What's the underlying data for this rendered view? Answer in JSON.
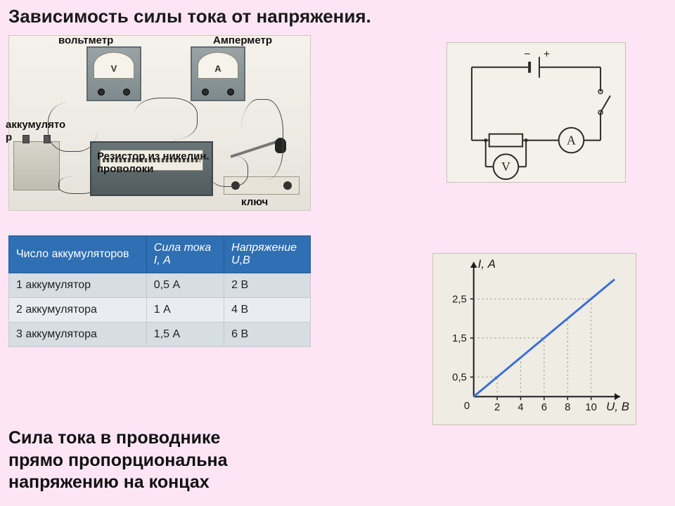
{
  "title": "Зависимость силы тока от напряжения.",
  "photo": {
    "labels": {
      "voltmeter": "вольтметр",
      "ammeter": "Амперметр",
      "battery_line1": "аккумулято",
      "battery_line2": "р",
      "resistor_line1": "Резистор из никелин.",
      "resistor_line2": "проволоки",
      "switch": "ключ"
    },
    "voltmeter_symbol": "V",
    "ammeter_symbol": "A",
    "meter_color": "#7e8a8d",
    "dial_color": "#f6f3ea"
  },
  "circuit": {
    "bg": "#f0eee5",
    "stroke": "#2a2a2a",
    "stroke_width": 2,
    "battery_minus": "−",
    "battery_plus": "+",
    "ammeter_label": "A",
    "voltmeter_label": "V",
    "label_fontsize": 18
  },
  "table": {
    "columns": [
      "Число аккумуляторов",
      "Сила тока\n I, А",
      "Напряжение\n U,В"
    ],
    "rows": [
      [
        "1 аккумулятор",
        "0,5 А",
        "2 В"
      ],
      [
        "2 аккумулятора",
        "1 А",
        "4 В"
      ],
      [
        "3 аккумулятора",
        "1,5 А",
        "6 В"
      ]
    ],
    "header_bg": "#2f6fb3",
    "header_fg": "#ffffff",
    "row_alt_bg": [
      "#d6dde3",
      "#e9edf1"
    ]
  },
  "graph": {
    "type": "line",
    "bg": "#eeece3",
    "axis_color": "#1a1a1a",
    "grid_color": "#8f8b7d",
    "line_color": "#3a6fd8",
    "line_width": 3,
    "ylabel": "I, А",
    "xlabel": "U, В",
    "origin_label": "0",
    "xlim": [
      0,
      12
    ],
    "ylim": [
      0,
      3.3
    ],
    "xticks": [
      2,
      4,
      6,
      8,
      10
    ],
    "yticks": [
      0.5,
      1.5,
      2.5
    ],
    "ytick_labels": [
      "0,5",
      "1,5",
      "2,5"
    ],
    "points": [
      [
        0,
        0
      ],
      [
        2,
        0.5
      ],
      [
        4,
        1
      ],
      [
        6,
        1.5
      ],
      [
        8,
        2
      ],
      [
        10,
        2.5
      ],
      [
        12,
        3
      ]
    ],
    "drop_lines_x": [
      2,
      4,
      6,
      8,
      10
    ],
    "tick_fontsize": 15,
    "label_fontsize": 17
  },
  "conclusion": {
    "line1": "Сила тока в проводнике",
    "line2": "прямо пропорциональна",
    "line3": "напряжению на концах"
  }
}
